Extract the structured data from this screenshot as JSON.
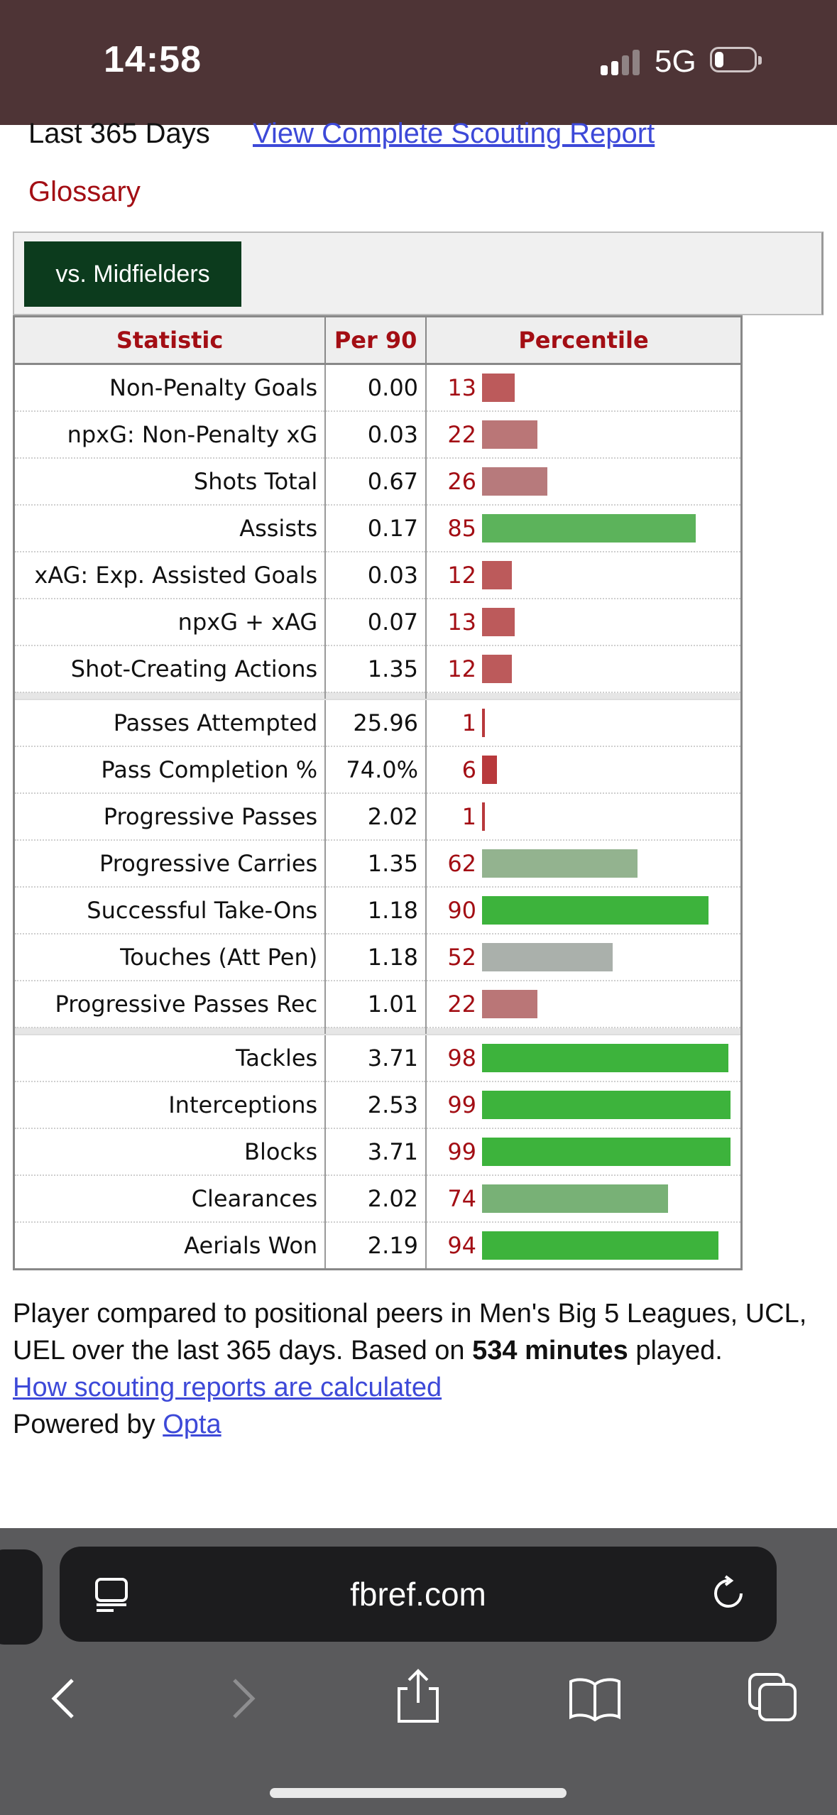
{
  "status_bar": {
    "time": "14:58",
    "network": "5G"
  },
  "header": {
    "period": "Last 365 Days",
    "report_link": "View Complete Scouting Report",
    "glossary": "Glossary",
    "filter_button": "vs. Midfielders"
  },
  "table": {
    "headers": {
      "statistic": "Statistic",
      "per90": "Per 90",
      "percentile": "Percentile"
    },
    "rows": [
      {
        "stat": "Non-Penalty Goals",
        "per90": "0.00",
        "pct": "13",
        "pct_value": 13,
        "color": "#bc5a5b"
      },
      {
        "stat": "npxG: Non-Penalty xG",
        "per90": "0.03",
        "pct": "22",
        "pct_value": 22,
        "color": "#ba7677"
      },
      {
        "stat": "Shots Total",
        "per90": "0.67",
        "pct": "26",
        "pct_value": 26,
        "color": "#b77a7c"
      },
      {
        "stat": "Assists",
        "per90": "0.17",
        "pct": "85",
        "pct_value": 85,
        "color": "#5cb35b"
      },
      {
        "stat": "xAG: Exp. Assisted Goals",
        "per90": "0.03",
        "pct": "12",
        "pct_value": 12,
        "color": "#bc5a5b"
      },
      {
        "stat": "npxG + xAG",
        "per90": "0.07",
        "pct": "13",
        "pct_value": 13,
        "color": "#bc5a5b"
      },
      {
        "stat": "Shot-Creating Actions",
        "per90": "1.35",
        "pct": "12",
        "pct_value": 12,
        "color": "#bc5a5b"
      },
      {
        "separator": true
      },
      {
        "stat": "Passes Attempted",
        "per90": "25.96",
        "pct": "1",
        "pct_value": 1,
        "color": "#b8393c"
      },
      {
        "stat": "Pass Completion %",
        "per90": "74.0%",
        "pct": "6",
        "pct_value": 6,
        "color": "#b8393c"
      },
      {
        "stat": "Progressive Passes",
        "per90": "2.02",
        "pct": "1",
        "pct_value": 1,
        "color": "#b8393c"
      },
      {
        "stat": "Progressive Carries",
        "per90": "1.35",
        "pct": "62",
        "pct_value": 62,
        "color": "#93b38f"
      },
      {
        "stat": "Successful Take-Ons",
        "per90": "1.18",
        "pct": "90",
        "pct_value": 90,
        "color": "#3db33c"
      },
      {
        "stat": "Touches (Att Pen)",
        "per90": "1.18",
        "pct": "52",
        "pct_value": 52,
        "color": "#aab0ab"
      },
      {
        "stat": "Progressive Passes Rec",
        "per90": "1.01",
        "pct": "22",
        "pct_value": 22,
        "color": "#ba7677"
      },
      {
        "separator": true
      },
      {
        "stat": "Tackles",
        "per90": "3.71",
        "pct": "98",
        "pct_value": 98,
        "color": "#3db33c"
      },
      {
        "stat": "Interceptions",
        "per90": "2.53",
        "pct": "99",
        "pct_value": 99,
        "color": "#3db33c"
      },
      {
        "stat": "Blocks",
        "per90": "3.71",
        "pct": "99",
        "pct_value": 99,
        "color": "#3db33c"
      },
      {
        "stat": "Clearances",
        "per90": "2.02",
        "pct": "74",
        "pct_value": 74,
        "color": "#78b176"
      },
      {
        "stat": "Aerials Won",
        "per90": "2.19",
        "pct": "94",
        "pct_value": 94,
        "color": "#3db33c"
      }
    ]
  },
  "footer": {
    "text_before": "Player compared to positional peers in Men's Big 5 Leagues, UCL, UEL over the last 365 days. Based on ",
    "minutes": "534 minutes",
    "text_after": " played.",
    "calc_link": "How scouting reports are calculated",
    "powered_by": "Powered by",
    "opta_link": "Opta"
  },
  "browser": {
    "url": "fbref.com",
    "icons": [
      "reader-icon",
      "reload-icon",
      "back-icon",
      "forward-icon",
      "share-icon",
      "bookmarks-icon",
      "tabs-icon"
    ]
  }
}
